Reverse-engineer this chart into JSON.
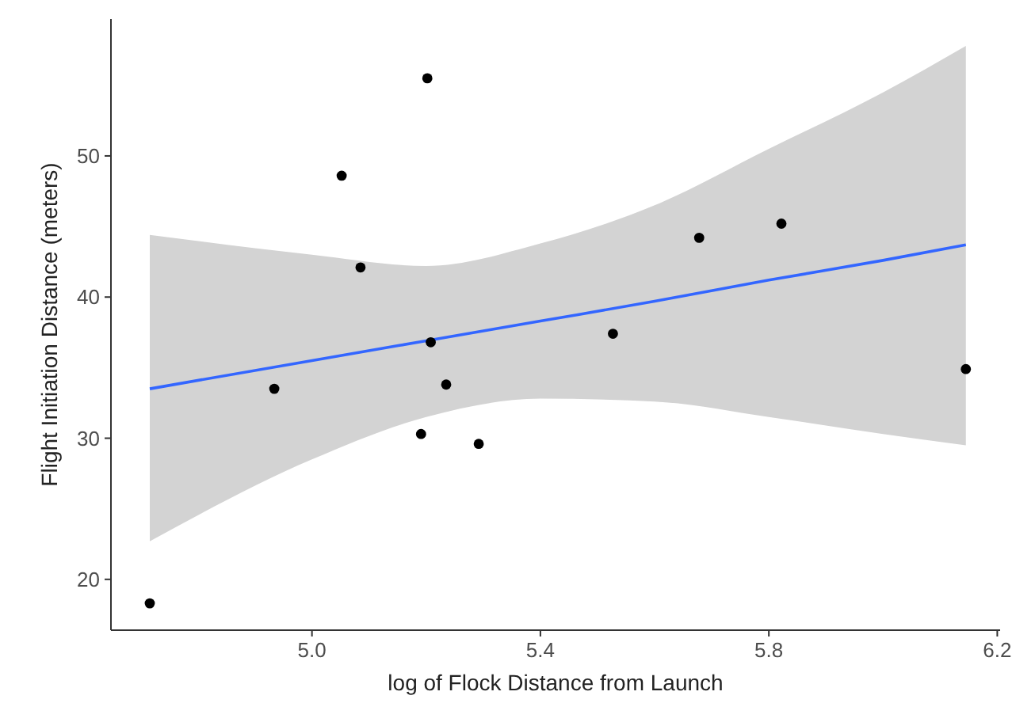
{
  "chart_data": {
    "type": "scatter",
    "xlabel": "log of Flock Distance from Launch",
    "ylabel": "Flight Initiation Distance (meters)",
    "xlim": [
      4.648,
      6.205
    ],
    "ylim": [
      16.4,
      59.7
    ],
    "xticks": [
      {
        "value": 5,
        "label": "5.0"
      },
      5.4,
      5.8,
      6.2
    ],
    "yticks": [
      20,
      30,
      40,
      50
    ],
    "grid": false,
    "series": [
      {
        "type": "line",
        "color": "#3366ff",
        "x": [
          4.716,
          5.0,
          5.2,
          5.4,
          5.6,
          5.8,
          6.0,
          6.145
        ],
        "values": [
          33.5,
          35.5,
          36.9,
          38.3,
          39.7,
          41.2,
          42.6,
          43.7
        ],
        "lower": [
          22.7,
          28.5,
          31.5,
          32.8,
          32.6,
          31.5,
          30.3,
          29.5
        ],
        "upper": [
          44.4,
          43.0,
          42.2,
          43.8,
          46.5,
          50.5,
          54.5,
          57.8
        ]
      },
      {
        "color": "#000000",
        "marker": "circle",
        "x": [
          4.716,
          4.934,
          5.052,
          5.085,
          5.202,
          5.191,
          5.208,
          5.235,
          5.292,
          5.527,
          5.678,
          5.822,
          6.145
        ],
        "values": [
          18.3,
          33.5,
          48.6,
          42.1,
          55.5,
          30.3,
          36.8,
          33.8,
          29.6,
          37.4,
          44.2,
          45.2,
          34.9
        ]
      }
    ]
  }
}
